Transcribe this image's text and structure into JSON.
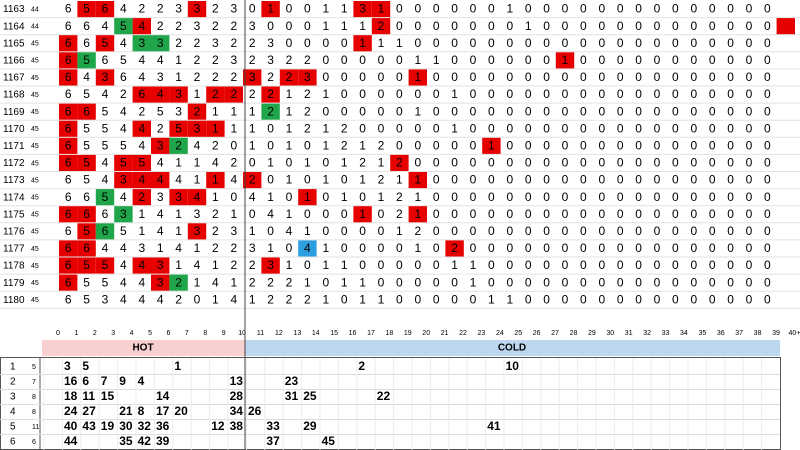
{
  "colors": {
    "red": "#e60000",
    "green": "#1fa64a",
    "blue": "#2b9fe0"
  },
  "draws": [
    {
      "label": 1163,
      "count": 44,
      "cells": [
        6,
        5,
        6,
        4,
        2,
        2,
        3,
        3,
        2,
        3,
        0,
        1,
        0,
        0,
        1,
        1,
        3,
        1,
        0,
        0,
        0,
        0,
        0,
        0,
        1,
        0,
        0,
        0,
        0,
        0,
        0,
        0,
        0,
        0,
        0,
        0,
        0,
        0,
        0,
        null
      ],
      "red": [
        1,
        2,
        7,
        11,
        16,
        17
      ],
      "green": [],
      "blue": []
    },
    {
      "label": 1164,
      "count": 44,
      "cells": [
        6,
        6,
        4,
        5,
        4,
        2,
        2,
        3,
        2,
        2,
        3,
        0,
        0,
        0,
        1,
        1,
        1,
        2,
        0,
        0,
        0,
        0,
        0,
        0,
        0,
        1,
        0,
        0,
        0,
        0,
        0,
        0,
        0,
        0,
        0,
        0,
        0,
        0,
        0,
        null
      ],
      "red": [
        4,
        17,
        39
      ],
      "green": [
        3
      ],
      "blue": []
    },
    {
      "label": 1165,
      "count": 45,
      "cells": [
        6,
        6,
        5,
        4,
        3,
        3,
        2,
        2,
        3,
        2,
        2,
        3,
        0,
        0,
        0,
        0,
        1,
        1,
        1,
        0,
        0,
        0,
        0,
        0,
        0,
        0,
        0,
        0,
        0,
        0,
        0,
        0,
        0,
        0,
        0,
        0,
        0,
        0,
        0,
        null
      ],
      "red": [
        0,
        2,
        16
      ],
      "green": [
        4,
        5
      ],
      "blue": []
    },
    {
      "label": 1166,
      "count": 45,
      "cells": [
        6,
        5,
        6,
        5,
        4,
        4,
        1,
        2,
        2,
        3,
        2,
        3,
        2,
        2,
        0,
        0,
        0,
        0,
        0,
        1,
        1,
        0,
        0,
        0,
        0,
        0,
        0,
        1,
        0,
        0,
        0,
        0,
        0,
        0,
        0,
        0,
        0,
        0,
        0,
        null
      ],
      "red": [
        0,
        27
      ],
      "green": [
        1
      ],
      "blue": []
    },
    {
      "label": 1167,
      "count": 45,
      "cells": [
        6,
        4,
        3,
        6,
        4,
        3,
        1,
        2,
        2,
        2,
        3,
        2,
        2,
        3,
        0,
        0,
        0,
        0,
        0,
        1,
        0,
        0,
        0,
        0,
        0,
        0,
        0,
        0,
        0,
        0,
        0,
        0,
        0,
        0,
        0,
        0,
        0,
        0,
        0,
        null
      ],
      "red": [
        0,
        2,
        10,
        12,
        13,
        19
      ],
      "green": [],
      "blue": []
    },
    {
      "label": 1168,
      "count": 45,
      "cells": [
        6,
        5,
        4,
        2,
        6,
        4,
        3,
        1,
        2,
        2,
        2,
        2,
        1,
        2,
        1,
        0,
        0,
        0,
        0,
        0,
        0,
        1,
        0,
        0,
        0,
        0,
        0,
        0,
        0,
        0,
        0,
        0,
        0,
        0,
        0,
        0,
        0,
        0,
        0,
        null
      ],
      "red": [
        4,
        5,
        6,
        8,
        9,
        11
      ],
      "green": [],
      "blue": []
    },
    {
      "label": 1169,
      "count": 45,
      "cells": [
        6,
        6,
        5,
        4,
        2,
        5,
        3,
        2,
        1,
        1,
        1,
        2,
        1,
        2,
        0,
        0,
        0,
        0,
        0,
        1,
        0,
        0,
        0,
        0,
        0,
        0,
        0,
        0,
        0,
        0,
        0,
        0,
        0,
        0,
        0,
        0,
        0,
        0,
        0,
        null
      ],
      "red": [
        0,
        1,
        7
      ],
      "green": [
        11
      ],
      "blue": []
    },
    {
      "label": 1170,
      "count": 45,
      "cells": [
        6,
        5,
        5,
        4,
        4,
        2,
        5,
        3,
        1,
        1,
        1,
        0,
        1,
        2,
        1,
        2,
        0,
        0,
        0,
        0,
        0,
        1,
        0,
        0,
        0,
        0,
        0,
        0,
        0,
        0,
        0,
        0,
        0,
        0,
        0,
        0,
        0,
        0,
        0,
        null
      ],
      "red": [
        0,
        4,
        6,
        7,
        8
      ],
      "green": [],
      "blue": []
    },
    {
      "label": 1171,
      "count": 45,
      "cells": [
        6,
        5,
        5,
        5,
        4,
        3,
        2,
        4,
        2,
        0,
        1,
        0,
        1,
        0,
        1,
        2,
        1,
        2,
        0,
        0,
        0,
        0,
        0,
        1,
        0,
        0,
        0,
        0,
        0,
        0,
        0,
        0,
        0,
        0,
        0,
        0,
        0,
        0,
        0,
        null
      ],
      "red": [
        0,
        5,
        23
      ],
      "green": [
        6
      ],
      "blue": []
    },
    {
      "label": 1172,
      "count": 45,
      "cells": [
        6,
        5,
        4,
        5,
        5,
        4,
        1,
        1,
        4,
        2,
        0,
        1,
        0,
        1,
        0,
        1,
        2,
        1,
        2,
        0,
        0,
        0,
        0,
        0,
        0,
        0,
        0,
        0,
        0,
        0,
        0,
        0,
        0,
        0,
        0,
        0,
        0,
        0,
        0,
        null
      ],
      "red": [
        0,
        1,
        3,
        4,
        18
      ],
      "green": [],
      "blue": []
    },
    {
      "label": 1173,
      "count": 45,
      "cells": [
        6,
        5,
        4,
        3,
        4,
        4,
        4,
        1,
        1,
        4,
        2,
        0,
        1,
        0,
        1,
        0,
        1,
        2,
        1,
        1,
        0,
        0,
        0,
        0,
        0,
        0,
        0,
        0,
        0,
        0,
        0,
        0,
        0,
        0,
        0,
        0,
        0,
        0,
        0,
        null
      ],
      "red": [
        3,
        4,
        5,
        8,
        10,
        19
      ],
      "green": [],
      "blue": []
    },
    {
      "label": 1174,
      "count": 45,
      "cells": [
        6,
        6,
        5,
        4,
        2,
        3,
        3,
        4,
        1,
        0,
        4,
        1,
        0,
        1,
        0,
        1,
        0,
        1,
        2,
        1,
        0,
        0,
        0,
        0,
        0,
        0,
        0,
        0,
        0,
        0,
        0,
        0,
        0,
        0,
        0,
        0,
        0,
        0,
        0,
        null
      ],
      "red": [
        4,
        6,
        7,
        13
      ],
      "green": [
        2
      ],
      "blue": []
    },
    {
      "label": 1175,
      "count": 45,
      "cells": [
        6,
        6,
        6,
        3,
        1,
        4,
        1,
        3,
        2,
        1,
        0,
        4,
        1,
        0,
        0,
        0,
        1,
        0,
        2,
        1,
        0,
        0,
        0,
        0,
        0,
        0,
        0,
        0,
        0,
        0,
        0,
        0,
        0,
        0,
        0,
        0,
        0,
        0,
        0,
        null
      ],
      "red": [
        0,
        1,
        16,
        19
      ],
      "green": [
        3
      ],
      "blue": []
    },
    {
      "label": 1176,
      "count": 45,
      "cells": [
        6,
        5,
        6,
        5,
        1,
        4,
        1,
        3,
        2,
        3,
        1,
        0,
        4,
        1,
        0,
        0,
        0,
        0,
        1,
        2,
        0,
        0,
        0,
        0,
        0,
        0,
        0,
        0,
        0,
        0,
        0,
        0,
        0,
        0,
        0,
        0,
        0,
        0,
        0,
        null
      ],
      "red": [
        1,
        7
      ],
      "green": [
        2
      ],
      "blue": []
    },
    {
      "label": 1177,
      "count": 45,
      "cells": [
        6,
        6,
        4,
        4,
        3,
        1,
        4,
        1,
        2,
        2,
        3,
        1,
        0,
        4,
        1,
        0,
        0,
        0,
        0,
        1,
        0,
        2,
        0,
        0,
        0,
        0,
        0,
        0,
        0,
        0,
        0,
        0,
        0,
        0,
        0,
        0,
        0,
        0,
        0,
        null
      ],
      "red": [
        0,
        1,
        21
      ],
      "green": [],
      "blue": [
        13
      ]
    },
    {
      "label": 1178,
      "count": 45,
      "cells": [
        6,
        5,
        5,
        4,
        4,
        3,
        1,
        4,
        1,
        2,
        2,
        3,
        1,
        0,
        1,
        1,
        0,
        0,
        0,
        0,
        0,
        1,
        1,
        0,
        0,
        0,
        0,
        0,
        0,
        0,
        0,
        0,
        0,
        0,
        0,
        0,
        0,
        0,
        0,
        null
      ],
      "red": [
        0,
        1,
        2,
        4,
        5,
        11
      ],
      "green": [],
      "blue": []
    },
    {
      "label": 1179,
      "count": 45,
      "cells": [
        6,
        5,
        5,
        4,
        4,
        3,
        2,
        1,
        4,
        1,
        2,
        2,
        2,
        1,
        0,
        1,
        1,
        0,
        0,
        0,
        0,
        0,
        1,
        0,
        0,
        0,
        0,
        0,
        0,
        0,
        0,
        0,
        0,
        0,
        0,
        0,
        0,
        0,
        0,
        null
      ],
      "red": [
        0,
        5
      ],
      "green": [
        6
      ],
      "blue": []
    },
    {
      "label": 1180,
      "count": 45,
      "cells": [
        6,
        5,
        3,
        4,
        4,
        4,
        2,
        0,
        1,
        4,
        1,
        2,
        2,
        2,
        1,
        0,
        1,
        1,
        0,
        0,
        0,
        0,
        0,
        1,
        1,
        0,
        0,
        0,
        0,
        0,
        0,
        0,
        0,
        0,
        0,
        0,
        0,
        0,
        0,
        null
      ],
      "red": [],
      "green": [],
      "blue": []
    }
  ],
  "columns": [
    0,
    1,
    2,
    3,
    4,
    5,
    6,
    7,
    8,
    9,
    10,
    11,
    12,
    13,
    14,
    15,
    16,
    17,
    18,
    19,
    20,
    21,
    22,
    23,
    24,
    25,
    26,
    27,
    28,
    29,
    30,
    31,
    32,
    33,
    34,
    35,
    36,
    37,
    38,
    39,
    "40+"
  ],
  "sections": {
    "hot": "HOT",
    "cold": "COLD"
  },
  "summary": [
    {
      "label": 1,
      "count": 5,
      "cells": [
        3,
        5,
        null,
        null,
        null,
        null,
        1,
        null,
        null,
        null,
        null,
        null,
        null,
        null,
        null,
        null,
        2,
        null,
        null,
        null,
        null,
        null,
        null,
        null,
        10
      ]
    },
    {
      "label": 2,
      "count": 7,
      "cells": [
        16,
        6,
        7,
        9,
        4,
        null,
        null,
        null,
        null,
        13,
        null,
        null,
        23
      ]
    },
    {
      "label": 3,
      "count": 8,
      "cells": [
        18,
        11,
        15,
        null,
        null,
        14,
        null,
        null,
        null,
        28,
        null,
        null,
        31,
        25,
        null,
        null,
        null,
        22
      ]
    },
    {
      "label": 4,
      "count": 8,
      "cells": [
        24,
        27,
        null,
        21,
        8,
        17,
        20,
        null,
        null,
        34,
        26
      ]
    },
    {
      "label": 5,
      "count": 11,
      "cells": [
        40,
        43,
        19,
        30,
        32,
        36,
        null,
        null,
        12,
        38,
        null,
        33,
        null,
        29,
        null,
        null,
        null,
        null,
        null,
        null,
        null,
        null,
        null,
        41
      ]
    },
    {
      "label": 6,
      "count": 6,
      "cells": [
        44,
        null,
        null,
        35,
        42,
        39,
        null,
        null,
        null,
        null,
        null,
        37,
        null,
        null,
        45
      ]
    }
  ]
}
